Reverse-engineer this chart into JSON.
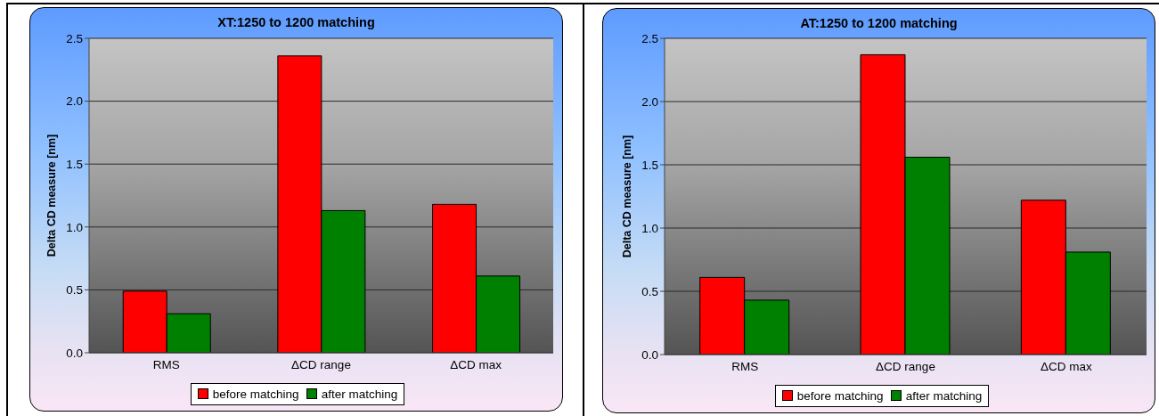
{
  "chart_data": [
    {
      "type": "bar",
      "title": "XT:1250 to 1200 matching",
      "ylabel": "Delta CD measure [nm]",
      "categories": [
        "RMS",
        "ΔCD range",
        "ΔCD max"
      ],
      "series": [
        {
          "name": "before matching",
          "color": "#ff0000",
          "values": [
            0.49,
            2.36,
            1.18
          ]
        },
        {
          "name": "after matching",
          "color": "#008000",
          "values": [
            0.31,
            1.13,
            0.61
          ]
        }
      ],
      "ylim": [
        0,
        2.5
      ],
      "yticks": [
        {
          "value": 0,
          "label": "0.0"
        },
        0.5,
        {
          "value": 1,
          "label": "1.0"
        },
        1.5,
        {
          "value": 2,
          "label": "2.0"
        },
        2.5
      ],
      "grid": "y",
      "legend": "bottom"
    },
    {
      "type": "bar",
      "title": "AT:1250 to 1200 matching",
      "ylabel": "Delta CD measure [nm]",
      "categories": [
        "RMS",
        "ΔCD range",
        "ΔCD max"
      ],
      "series": [
        {
          "name": "before matching",
          "color": "#ff0000",
          "values": [
            0.61,
            2.37,
            1.22
          ]
        },
        {
          "name": "after matching",
          "color": "#008000",
          "values": [
            0.43,
            1.56,
            0.81
          ]
        }
      ],
      "ylim": [
        0,
        2.5
      ],
      "yticks": [
        {
          "value": 0,
          "label": "0.0"
        },
        0.5,
        {
          "value": 1,
          "label": "1.0"
        },
        1.5,
        {
          "value": 2,
          "label": "2.0"
        },
        2.5
      ],
      "grid": "y",
      "legend": "bottom"
    }
  ]
}
